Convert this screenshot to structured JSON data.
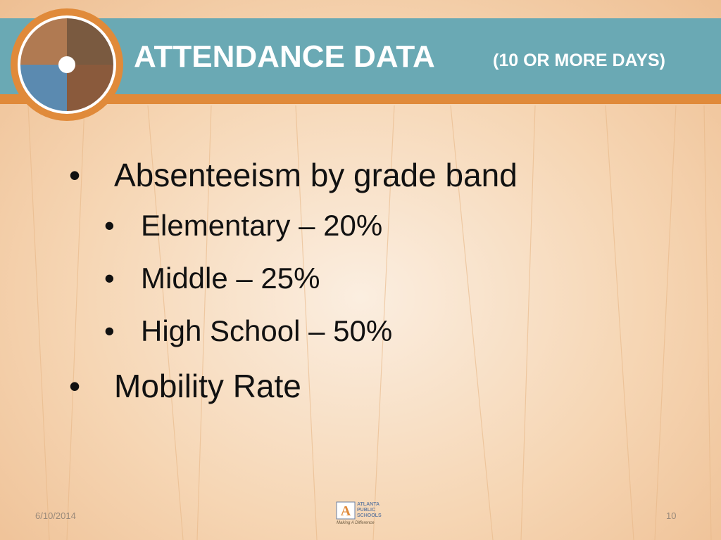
{
  "header": {
    "title": "ATTENDANCE DATA",
    "subtitle": "(10 OR MORE DAYS)"
  },
  "bullets": [
    {
      "text": "Absenteeism by grade band",
      "sub": [
        "Elementary – 20%",
        "Middle – 25%",
        "High School – 50%"
      ]
    },
    {
      "text": "Mobility Rate",
      "sub": []
    }
  ],
  "footer": {
    "date": "6/10/2014",
    "page": "10",
    "logo": {
      "name": "ATLANTA PUBLIC SCHOOLS",
      "tagline": "Making A Difference"
    }
  }
}
